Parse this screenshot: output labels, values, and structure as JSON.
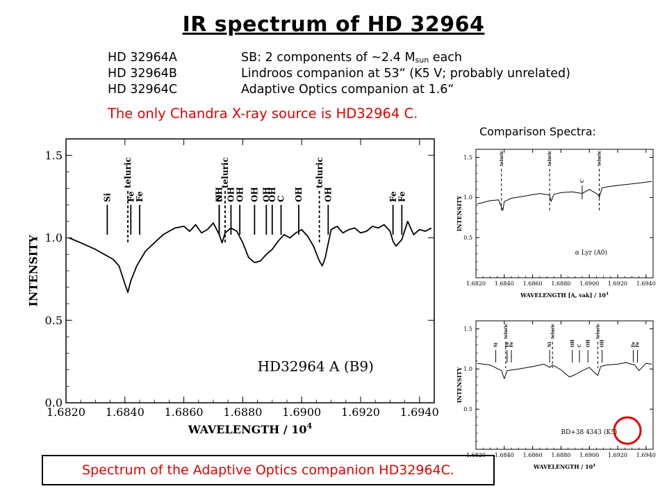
{
  "slide": {
    "title": "IR spectrum of HD 32964",
    "components": [
      {
        "id": "HD 32964A",
        "desc_pre": "SB: 2 components of ~2.4 M",
        "desc_sub": "sun",
        "desc_post": " each"
      },
      {
        "id": "HD 32964B",
        "desc_pre": "Lindroos companion at 53“ (K5 V; probably unrelated)",
        "desc_sub": "",
        "desc_post": ""
      },
      {
        "id": "HD 32964C",
        "desc_pre": "Adaptive Optics companion at 1.6“",
        "desc_sub": "",
        "desc_post": ""
      }
    ],
    "highlight": "The only Chandra X-ray source is HD32964 C.",
    "comparison_label": "Comparison Spectra:",
    "caption": "Spectrum of the Adaptive Optics companion HD32964C.",
    "colors": {
      "accent": "#e00000",
      "text": "#000000"
    }
  },
  "chart_data": [
    {
      "type": "line",
      "panel": "main",
      "label": "HD32964  A  (B9)",
      "xlabel": "WAVELENGTH  /  10",
      "xlabel_exp": "4",
      "ylabel": "INTENSITY",
      "xlim": [
        1.682,
        1.6945
      ],
      "ylim": [
        0,
        1.6
      ],
      "xticks": [
        "1.6820",
        "1.6840",
        "1.6860",
        "1.6880",
        "1.6900",
        "1.6920",
        "1.6940"
      ],
      "yticks": [
        "0.0",
        "0.5",
        "1.0",
        "1.5"
      ],
      "series": [
        {
          "x": [
            1.6821,
            1.6825,
            1.683,
            1.6833,
            1.6836,
            1.6838,
            1.684,
            1.6841,
            1.6842,
            1.6844,
            1.6847,
            1.685,
            1.6853,
            1.6855,
            1.6857,
            1.686,
            1.6862,
            1.6864,
            1.6866,
            1.6868,
            1.687,
            1.6872,
            1.6873,
            1.6874,
            1.6876,
            1.6878,
            1.688,
            1.6882,
            1.6884,
            1.6886,
            1.6888,
            1.689,
            1.6892,
            1.6894,
            1.6896,
            1.6898,
            1.69,
            1.6902,
            1.6904,
            1.6906,
            1.6907,
            1.6908,
            1.691,
            1.6912,
            1.6914,
            1.6916,
            1.6918,
            1.692,
            1.6922,
            1.6924,
            1.6926,
            1.6928,
            1.693,
            1.6931,
            1.6932,
            1.6934,
            1.6936,
            1.6938,
            1.694,
            1.6942,
            1.6944
          ],
          "y": [
            1.0,
            0.97,
            0.93,
            0.9,
            0.87,
            0.83,
            0.72,
            0.67,
            0.74,
            0.83,
            0.92,
            0.97,
            1.02,
            1.04,
            1.06,
            1.07,
            1.04,
            1.08,
            1.03,
            1.05,
            1.09,
            1.02,
            0.97,
            1.03,
            1.06,
            1.04,
            0.97,
            0.88,
            0.85,
            0.86,
            0.9,
            0.93,
            0.98,
            1.02,
            1.0,
            1.03,
            1.05,
            1.01,
            0.95,
            0.86,
            0.83,
            0.88,
            1.05,
            1.07,
            1.03,
            1.05,
            1.06,
            1.03,
            1.04,
            1.07,
            1.06,
            1.08,
            1.04,
            0.98,
            0.95,
            0.99,
            1.1,
            1.02,
            1.05,
            1.04,
            1.06
          ]
        }
      ],
      "line_markers": [
        {
          "x": 1.6834,
          "label": "Si",
          "tier": "low",
          "dashed": false
        },
        {
          "x": 1.6841,
          "label": "telluric",
          "tier": "high",
          "dashed": true,
          "text": "telluric"
        },
        {
          "x": 1.6842,
          "label": "Fe",
          "tier": "low",
          "dashed": false
        },
        {
          "x": 1.6845,
          "label": "Fe",
          "tier": "low",
          "dashed": false
        },
        {
          "x": 1.6872,
          "label": "Ni",
          "tier": "low",
          "dashed": false
        },
        {
          "x": 1.6872,
          "label": "OH",
          "tier": "mid",
          "dashed": false
        },
        {
          "x": 1.6874,
          "label": "telluric",
          "tier": "high",
          "dashed": true
        },
        {
          "x": 1.6876,
          "label": "OH",
          "tier": "mid",
          "dashed": false
        },
        {
          "x": 1.6879,
          "label": "OH",
          "tier": "mid",
          "dashed": false
        },
        {
          "x": 1.6884,
          "label": "OH",
          "tier": "mid",
          "dashed": false
        },
        {
          "x": 1.6888,
          "label": "OH",
          "tier": "mid",
          "dashed": false
        },
        {
          "x": 1.689,
          "label": "OH",
          "tier": "mid",
          "dashed": false
        },
        {
          "x": 1.6893,
          "label": "C",
          "tier": "low",
          "dashed": false
        },
        {
          "x": 1.6899,
          "label": "OH",
          "tier": "mid",
          "dashed": false
        },
        {
          "x": 1.6906,
          "label": "telluric",
          "tier": "high",
          "dashed": true
        },
        {
          "x": 1.6909,
          "label": "OH",
          "tier": "mid",
          "dashed": false
        },
        {
          "x": 1.6931,
          "label": "Fe",
          "tier": "low",
          "dashed": false
        },
        {
          "x": 1.6934,
          "label": "Fe",
          "tier": "mid",
          "dashed": false
        }
      ]
    },
    {
      "type": "line",
      "panel": "comparison-top",
      "label": "α  Lyr  (A0)",
      "xlabel": "WAVELENGTH [A, vak] / 10",
      "xlabel_exp": "4",
      "ylabel": "INTENSITY",
      "xlim": [
        1.682,
        1.6945
      ],
      "ylim": [
        0,
        1.6
      ],
      "xticks": [
        "1.6820",
        "1.6840",
        "1.6860",
        "1.6880",
        "1.6900",
        "1.6920",
        "1.6940"
      ],
      "yticks": [
        "0.5",
        "1.0",
        "1.5"
      ],
      "series": [
        {
          "x": [
            1.6821,
            1.683,
            1.6836,
            1.6838,
            1.6839,
            1.684,
            1.6845,
            1.6855,
            1.6865,
            1.6872,
            1.6873,
            1.6875,
            1.688,
            1.6888,
            1.6895,
            1.69,
            1.6906,
            1.6907,
            1.6909,
            1.6915,
            1.6925,
            1.6935,
            1.6944
          ],
          "y": [
            0.92,
            0.96,
            0.97,
            0.88,
            0.84,
            0.95,
            0.99,
            1.02,
            1.05,
            1.03,
            0.95,
            1.04,
            1.06,
            1.07,
            1.05,
            1.1,
            1.04,
            1.0,
            1.12,
            1.14,
            1.16,
            1.18,
            1.2
          ]
        }
      ],
      "line_markers": [
        {
          "x": 1.6838,
          "label": "telluric",
          "dashed": true
        },
        {
          "x": 1.6872,
          "label": "telluric",
          "dashed": true
        },
        {
          "x": 1.6895,
          "label": "C",
          "dashed": false
        },
        {
          "x": 1.6907,
          "label": "telluric",
          "dashed": true
        }
      ]
    },
    {
      "type": "line",
      "panel": "comparison-bottom",
      "label": "BD+38  4343  (K5)",
      "xlabel": "WAVELENGTH / 10",
      "xlabel_exp": "4",
      "ylabel": "INTENSITY",
      "xlim": [
        1.682,
        1.6945
      ],
      "ylim": [
        0,
        1.6
      ],
      "xticks": [
        "1.6820",
        "1.6840",
        "1.6860",
        "1.6880",
        "1.6900",
        "1.6920",
        "1.6940"
      ],
      "yticks": [
        "0.5",
        "1.0",
        "1.5"
      ],
      "series": [
        {
          "x": [
            1.6821,
            1.683,
            1.6838,
            1.684,
            1.6842,
            1.685,
            1.686,
            1.6868,
            1.6872,
            1.6874,
            1.688,
            1.6886,
            1.689,
            1.6895,
            1.69,
            1.6904,
            1.6906,
            1.6908,
            1.6912,
            1.692,
            1.6926,
            1.6932,
            1.6935,
            1.694,
            1.6944
          ],
          "y": [
            1.07,
            1.05,
            0.98,
            0.88,
            0.98,
            1.0,
            1.03,
            1.06,
            1.02,
            1.05,
            0.99,
            0.9,
            0.93,
            0.98,
            1.02,
            0.95,
            0.92,
            1.03,
            1.05,
            1.06,
            1.08,
            1.05,
            0.98,
            1.07,
            1.06
          ]
        }
      ],
      "line_markers": [
        {
          "x": 1.6834,
          "label": "Si",
          "dashed": false
        },
        {
          "x": 1.6841,
          "label": "telluric",
          "dashed": true
        },
        {
          "x": 1.6842,
          "label": "Fe",
          "dashed": false
        },
        {
          "x": 1.6845,
          "label": "Fe",
          "dashed": false
        },
        {
          "x": 1.6872,
          "label": "Ni",
          "dashed": false
        },
        {
          "x": 1.6874,
          "label": "telluric",
          "dashed": true
        },
        {
          "x": 1.6888,
          "label": "OH",
          "dashed": false
        },
        {
          "x": 1.6893,
          "label": "C",
          "dashed": false
        },
        {
          "x": 1.6899,
          "label": "OH",
          "dashed": false
        },
        {
          "x": 1.6906,
          "label": "telluric",
          "dashed": true
        },
        {
          "x": 1.6909,
          "label": "OH",
          "dashed": false
        },
        {
          "x": 1.6931,
          "label": "Fe",
          "dashed": false
        },
        {
          "x": 1.6934,
          "label": "Fe",
          "dashed": false
        }
      ]
    }
  ]
}
